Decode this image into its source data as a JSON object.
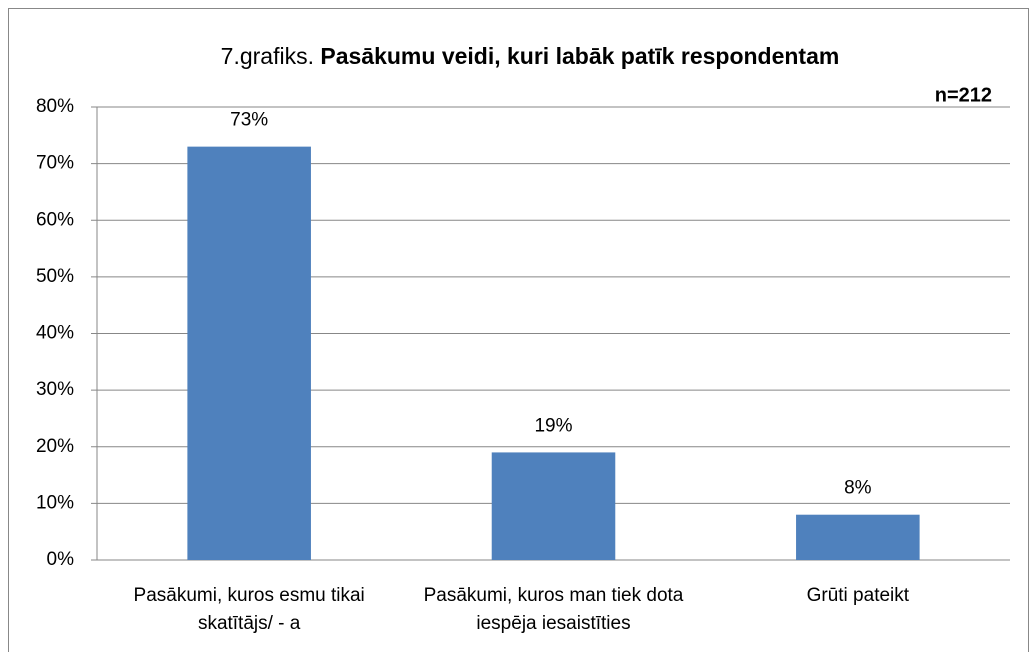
{
  "chart_data": {
    "type": "bar",
    "title": "7.grafiks.",
    "title_bold": "Pasākumu veidi, kuri labāk patīk respondentam",
    "annotation": "n=212",
    "categories": [
      "Pasākumi, kuros esmu tikai skatītājs/ - a",
      "Pasākumi, kuros man tiek dota iespēja iesaistīties",
      "Grūti pateikt"
    ],
    "values": [
      73,
      19,
      8
    ],
    "value_labels": [
      "73%",
      "19%",
      "8%"
    ],
    "color": "#4f81bd",
    "ylim": [
      0,
      80
    ],
    "yticks": [
      {
        "value": 0,
        "label": "0%"
      },
      {
        "value": 10,
        "label": "10%"
      },
      {
        "value": 20,
        "label": "20%"
      },
      {
        "value": 30,
        "label": "30%"
      },
      {
        "value": 40,
        "label": "40%"
      },
      {
        "value": 50,
        "label": "50%"
      },
      {
        "value": 60,
        "label": "60%"
      },
      {
        "value": 70,
        "label": "70%"
      },
      {
        "value": 80,
        "label": "80%"
      }
    ],
    "grid": true
  }
}
